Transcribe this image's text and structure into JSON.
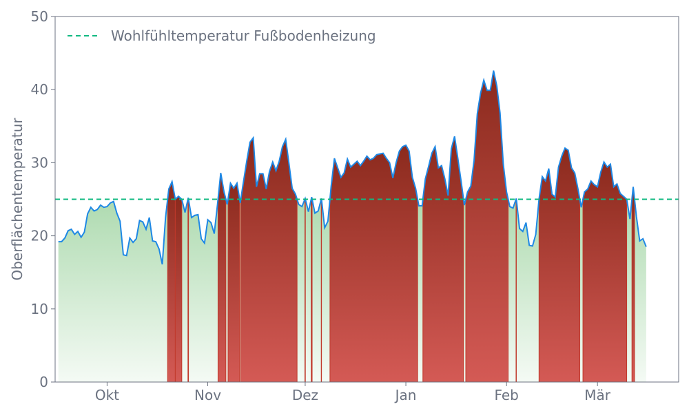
{
  "chart_data": {
    "type": "area",
    "title": "",
    "ylabel": "Oberflächentemperatur",
    "xlabel": "",
    "ylim": [
      0,
      50
    ],
    "y_ticks": [
      0,
      10,
      20,
      30,
      40,
      50
    ],
    "x_range": [
      "2022-09-15",
      "2023-03-26"
    ],
    "x_ticks": [
      {
        "date": "2022-10-01",
        "label": "Okt"
      },
      {
        "date": "2022-11-01",
        "label": "Nov"
      },
      {
        "date": "2022-12-01",
        "label": "Dez"
      },
      {
        "date": "2023-01-01",
        "label": "Jan"
      },
      {
        "date": "2023-02-01",
        "label": "Feb"
      },
      {
        "date": "2023-03-01",
        "label": "Mär"
      }
    ],
    "grid": false,
    "legend_position": "top-left",
    "threshold": {
      "name": "Wohlfühltemperatur Fußbodenheizung",
      "value": 25,
      "color": "#10b981"
    },
    "colors": {
      "line": "#1e88e5",
      "below_fill": "#7cc47f",
      "above_fill_top": "#8b2a1d",
      "above_fill_bottom": "#d45a55",
      "axis": "#6b7280"
    },
    "series": [
      {
        "start_date": "2022-09-16",
        "step_days": 1,
        "values": [
          19.2,
          19.2,
          19.7,
          20.7,
          20.9,
          20.2,
          20.6,
          19.8,
          20.5,
          23.0,
          23.9,
          23.4,
          23.6,
          24.2,
          23.9,
          24.0,
          24.5,
          24.7,
          23.1,
          22.0,
          17.4,
          17.3,
          19.7,
          19.1,
          19.6,
          22.1,
          21.9,
          20.9,
          22.5,
          19.3,
          19.2,
          18.2,
          16.1,
          22.5,
          26.4,
          27.4,
          25.0,
          25.4,
          25.0,
          23.2,
          25.2,
          22.5,
          22.8,
          22.9,
          19.6,
          19.0,
          22.2,
          21.8,
          20.3,
          24.3,
          28.6,
          26.0,
          24.3,
          27.2,
          26.5,
          27.2,
          24.5,
          27.4,
          30.2,
          32.8,
          33.4,
          26.7,
          28.5,
          28.5,
          26.4,
          28.8,
          30.1,
          28.9,
          30.2,
          32.2,
          33.2,
          29.9,
          26.5,
          25.7,
          24.3,
          24.0,
          25.1,
          23.3,
          25.3,
          23.1,
          23.4,
          25.1,
          21.1,
          22.0,
          26.8,
          30.6,
          29.3,
          28.0,
          28.6,
          30.5,
          29.4,
          29.8,
          30.2,
          29.6,
          30.2,
          30.9,
          30.4,
          30.6,
          31.1,
          31.2,
          31.3,
          30.6,
          30.0,
          27.9,
          30.0,
          31.6,
          32.2,
          32.4,
          31.6,
          28.0,
          26.5,
          24.1,
          24.1,
          27.8,
          29.5,
          31.3,
          32.2,
          29.3,
          29.6,
          27.8,
          25.5,
          31.9,
          33.6,
          30.6,
          27.5,
          24.2,
          26.0,
          26.8,
          30.3,
          36.7,
          39.5,
          41.3,
          39.9,
          39.9,
          42.6,
          40.5,
          36.8,
          29.8,
          26.0,
          24.0,
          23.8,
          25.1,
          21.0,
          20.6,
          21.8,
          18.7,
          18.6,
          20.2,
          25.0,
          28.1,
          27.5,
          29.2,
          25.7,
          25.3,
          29.4,
          30.9,
          32.0,
          31.7,
          29.3,
          28.6,
          26.4,
          23.9,
          26.0,
          26.4,
          27.5,
          27.0,
          26.7,
          28.7,
          30.1,
          29.4,
          29.8,
          26.7,
          27.1,
          25.8,
          25.4,
          25.0,
          22.3,
          26.7,
          22.6,
          19.3,
          19.6,
          18.5
        ]
      }
    ]
  }
}
